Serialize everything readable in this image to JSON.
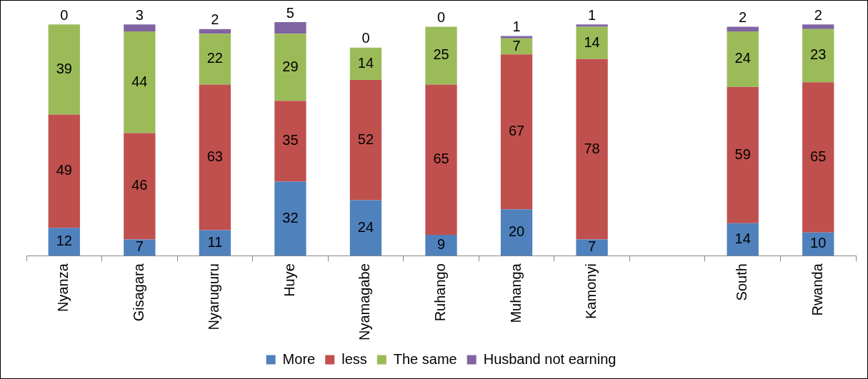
{
  "chart_data": {
    "type": "bar",
    "stacked": true,
    "data_labels": true,
    "legend": "bottom",
    "grid": false,
    "categories": [
      "Nyanza",
      "Gisagara",
      "Nyaruguru",
      "Huye",
      "Nyamagabe",
      "Ruhango",
      "Muhanga",
      "Kamonyi",
      null,
      "South",
      "Rwanda"
    ],
    "series": [
      {
        "name": "More",
        "color": "#4f81bd",
        "values": [
          12,
          7,
          11,
          32,
          24,
          9,
          20,
          7,
          null,
          14,
          10
        ]
      },
      {
        "name": "less",
        "color": "#c0504d",
        "values": [
          49,
          46,
          63,
          35,
          52,
          65,
          67,
          78,
          null,
          59,
          65
        ]
      },
      {
        "name": "The same",
        "color": "#9bbb59",
        "values": [
          39,
          44,
          22,
          29,
          14,
          25,
          7,
          14,
          null,
          24,
          23
        ]
      },
      {
        "name": "Husband not earning",
        "color": "#8064a2",
        "values": [
          0,
          3,
          2,
          5,
          0,
          0,
          1,
          1,
          null,
          2,
          2
        ]
      }
    ]
  }
}
